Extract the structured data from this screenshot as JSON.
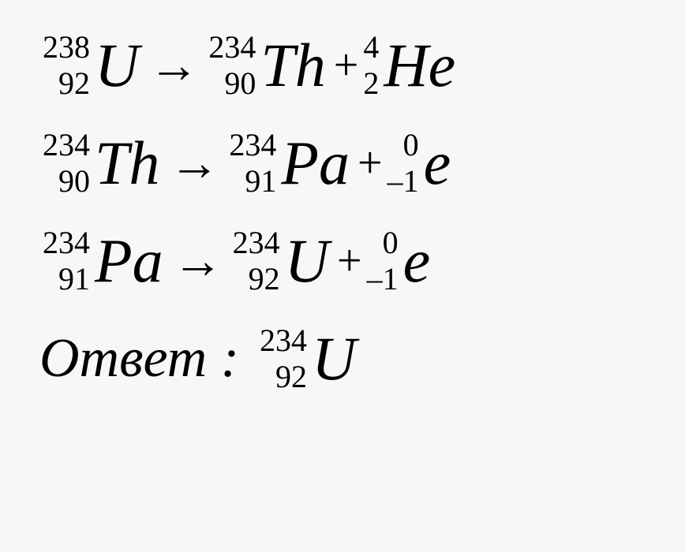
{
  "equations": [
    {
      "line": 1,
      "left": {
        "mass": "238",
        "atomic": "92",
        "symbol": "U"
      },
      "arrow": "→",
      "right1": {
        "mass": "234",
        "atomic": "90",
        "symbol": "Th"
      },
      "plus": "+",
      "right2": {
        "mass": "4",
        "atomic": "2",
        "symbol": "He"
      }
    },
    {
      "line": 2,
      "left": {
        "mass": "234",
        "atomic": "90",
        "symbol": "Th"
      },
      "arrow": "→",
      "right1": {
        "mass": "234",
        "atomic": "91",
        "symbol": "Pa"
      },
      "plus": "+",
      "right2": {
        "mass": "0",
        "atomic": "–1",
        "symbol": "e"
      }
    },
    {
      "line": 3,
      "left": {
        "mass": "234",
        "atomic": "91",
        "symbol": "Pa"
      },
      "arrow": "→",
      "right1": {
        "mass": "234",
        "atomic": "92",
        "symbol": "U"
      },
      "plus": "+",
      "right2": {
        "mass": "0",
        "atomic": "–1",
        "symbol": "e"
      }
    }
  ],
  "answer": {
    "label": "Ответ :",
    "nuclide": {
      "mass": "234",
      "atomic": "92",
      "symbol": "U"
    }
  },
  "style": {
    "background": "#f7f7f7",
    "text_color": "#000000",
    "symbol_fontsize": 78,
    "script_fontsize": 40,
    "answer_fontsize": 70
  }
}
